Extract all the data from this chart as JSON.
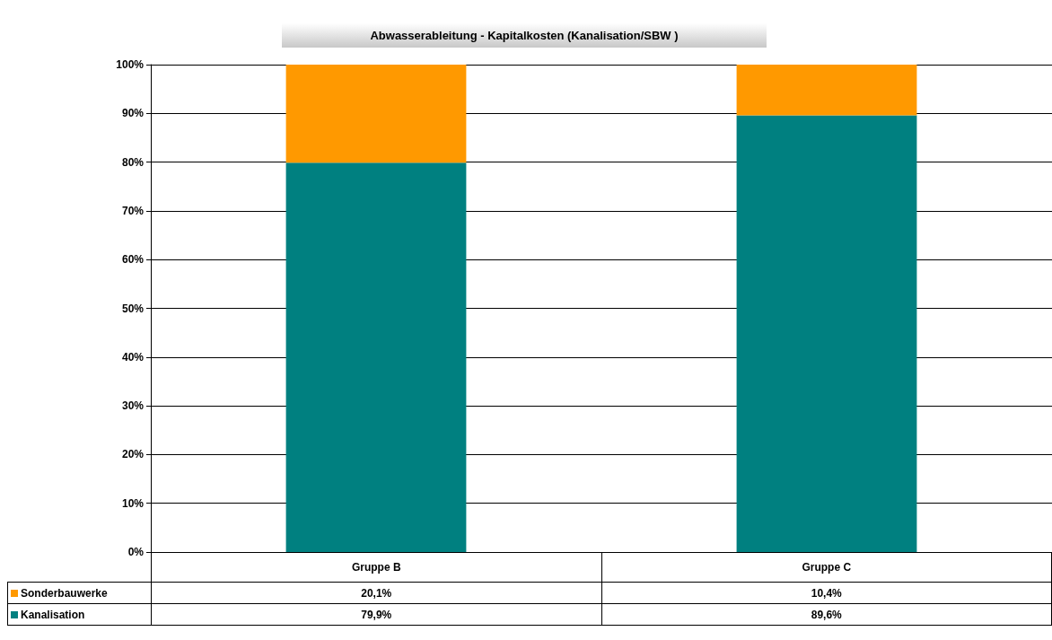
{
  "chart_data": {
    "type": "bar",
    "title": "Abwasserableitung - Kapitalkosten (Kanalisation/SBW )",
    "categories": [
      "Gruppe B",
      "Gruppe C"
    ],
    "stacked": true,
    "series": [
      {
        "name": "Kanalisation",
        "color": "#008080",
        "values": [
          79.9,
          89.6
        ],
        "value_labels": [
          "79,9%",
          "89,6%"
        ]
      },
      {
        "name": "Sonderbauwerke",
        "color": "#ff9900",
        "values": [
          20.1,
          10.4
        ],
        "value_labels": [
          "20,1%",
          "10,4%"
        ]
      }
    ],
    "ylim": [
      0,
      100
    ],
    "yticks": [
      {
        "value": 0,
        "label": "0%"
      },
      {
        "value": 10,
        "label": "10%"
      },
      {
        "value": 20,
        "label": "20%"
      },
      {
        "value": 30,
        "label": "30%"
      },
      {
        "value": 40,
        "label": "40%"
      },
      {
        "value": 50,
        "label": "50%"
      },
      {
        "value": 60,
        "label": "60%"
      },
      {
        "value": 70,
        "label": "70%"
      },
      {
        "value": 80,
        "label": "80%"
      },
      {
        "value": 90,
        "label": "90%"
      },
      {
        "value": 100,
        "label": "100%"
      }
    ],
    "grid": "y",
    "legend": "bottom left"
  }
}
